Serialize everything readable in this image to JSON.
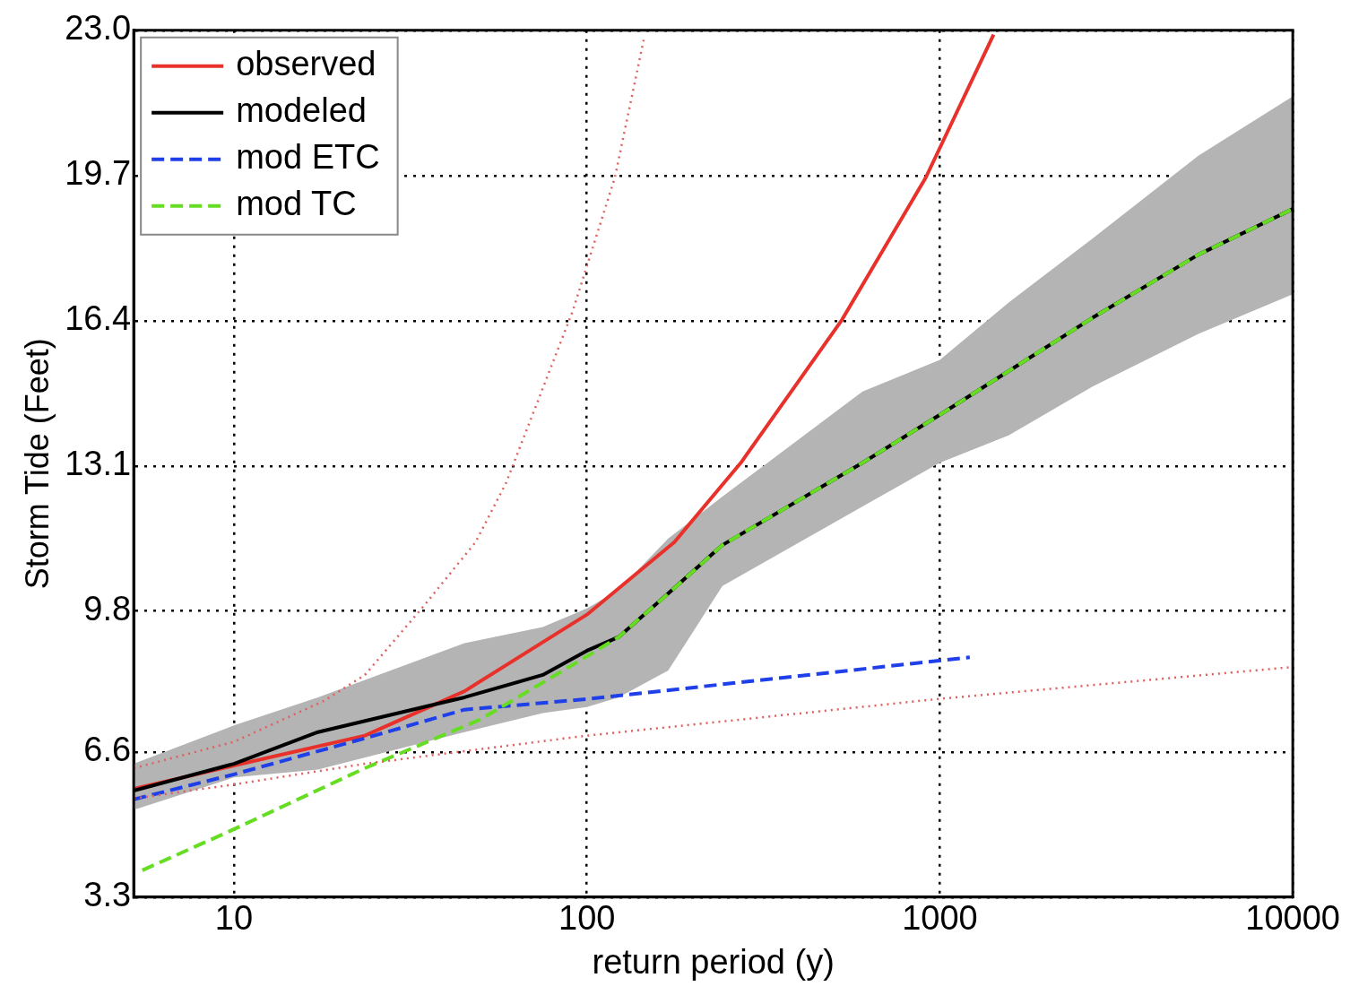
{
  "chart_data": {
    "type": "line",
    "xlabel": "return period (y)",
    "ylabel": "Storm Tide (Feet)",
    "log": "x",
    "grid": true,
    "legend": "top left",
    "xlim": [
      5.2,
      10000
    ],
    "xticks": [
      10,
      100,
      1000,
      10000
    ],
    "ylim": [
      3.3,
      23.0
    ],
    "yticks": [
      3.3,
      6.6,
      9.8,
      13.1,
      16.4,
      19.7,
      {
        "value": 23.0,
        "label": "23.0"
      }
    ],
    "series": [
      {
        "name": "observed",
        "color": "#e8312a",
        "line_style": "solid",
        "x": [
          5.2,
          10,
          23.5,
          45,
          100,
          177,
          273,
          528,
          912,
          1420
        ],
        "values": [
          5.76,
          6.29,
          6.97,
          7.98,
          9.72,
          11.37,
          13.17,
          16.42,
          19.65,
          22.9
        ]
      },
      {
        "name": "modeled",
        "color": "#000000",
        "line_style": "solid",
        "x": [
          5.2,
          10,
          17.3,
          45,
          75,
          100,
          123,
          170,
          242,
          604,
          1000,
          1570,
          2700,
          5400,
          10000
        ],
        "values": [
          5.72,
          6.33,
          7.05,
          7.84,
          8.35,
          8.9,
          9.21,
          10.2,
          11.3,
          13.17,
          14.26,
          15.26,
          16.46,
          17.9,
          18.94
        ],
        "lower": [
          5.28,
          6.02,
          6.2,
          7.05,
          7.48,
          7.62,
          7.84,
          8.45,
          10.37,
          12.18,
          13.17,
          13.8,
          14.9,
          16.1,
          17.0
        ],
        "upper": [
          6.33,
          7.2,
          7.84,
          9.07,
          9.44,
          9.86,
          10.28,
          11.45,
          12.4,
          14.79,
          15.51,
          16.82,
          18.26,
          20.15,
          21.5
        ]
      },
      {
        "name": "mod ETC",
        "color": "#1f3fe8",
        "line_style": "dashed",
        "x": [
          5.2,
          10,
          23.5,
          45,
          100,
          1216
        ],
        "values": [
          5.52,
          6.09,
          6.91,
          7.56,
          7.8,
          8.75
        ]
      },
      {
        "name": "mod TC",
        "color": "#66dd22",
        "line_style": "dashed",
        "x": [
          5.5,
          9.8,
          23.5,
          50,
          100,
          123,
          170,
          242,
          604,
          1000,
          1570,
          2700,
          5400,
          10000
        ],
        "values": [
          3.91,
          4.81,
          6.23,
          7.34,
          8.77,
          9.21,
          10.2,
          11.3,
          13.17,
          14.26,
          15.26,
          16.46,
          17.9,
          18.94
        ]
      },
      {
        "color": "#e06060",
        "line_style": "dotted",
        "x": [
          5.2,
          10,
          18,
          23.5,
          34.7,
          48.4,
          59,
          91,
          120,
          145
        ],
        "values": [
          6.23,
          6.83,
          7.76,
          8.35,
          9.94,
          11.37,
          12.71,
          16.6,
          19.65,
          22.8
        ]
      },
      {
        "color": "#e06060",
        "line_style": "dotted",
        "x": [
          5.2,
          10,
          23.5,
          100,
          980,
          10000
        ],
        "values": [
          5.54,
          5.86,
          6.33,
          6.97,
          7.8,
          8.53
        ]
      }
    ]
  }
}
